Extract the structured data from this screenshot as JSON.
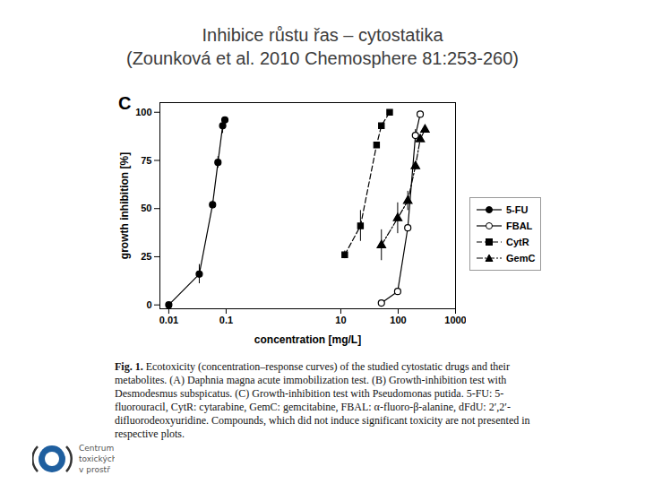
{
  "chart_data": {
    "type": "line",
    "title": "Inhibice růstu řas – cytostatika",
    "subtitle": "(Zounková et al. 2010 Chemosphere 81:253-260)",
    "panel_label": "C",
    "x_label": "concentration [mg/L]",
    "y_label": "growth inhibition [%]",
    "log": "x",
    "grid": false,
    "legend": "right",
    "xlim": [
      0.007,
      1000
    ],
    "xticks": [
      0.01,
      0.1,
      10,
      100,
      1000
    ],
    "ylim": [
      -2,
      105
    ],
    "yticks": [
      0,
      25,
      50,
      75,
      100
    ],
    "series": [
      {
        "name": "5-FU",
        "color": "#000000",
        "marker": "circle",
        "line_style": "solid",
        "x": [
          0.01,
          0.034,
          0.058,
          0.072,
          0.087,
          0.095
        ],
        "values": [
          0,
          16,
          52,
          74,
          93,
          96
        ],
        "errors": [
          null,
          5,
          2,
          3,
          4,
          null
        ]
      },
      {
        "name": "FBAL",
        "color": "#000000",
        "marker": "circle-open",
        "line_style": "solid",
        "x": [
          51,
          98,
          147,
          200,
          242
        ],
        "values": [
          1,
          7,
          40,
          88,
          99
        ],
        "errors": [
          null,
          null,
          null,
          3,
          null
        ]
      },
      {
        "name": "CytR",
        "color": "#000000",
        "marker": "square",
        "line_style": "dashed",
        "x": [
          11.7,
          22,
          42,
          51,
          71
        ],
        "values": [
          26,
          41,
          83,
          93,
          100
        ],
        "errors": [
          2,
          8,
          null,
          null,
          null
        ]
      },
      {
        "name": "GemC",
        "color": "#000000",
        "marker": "triangle",
        "line_style": "dashdot",
        "x": [
          51,
          98,
          147,
          200,
          242,
          293
        ],
        "values": [
          31,
          45,
          54,
          72,
          86,
          91
        ],
        "errors": [
          8,
          8,
          5,
          2,
          1,
          null
        ]
      }
    ],
    "caption_label": "Fig. 1.",
    "caption": "Ecotoxicity (concentration–response curves) of the studied cytostatic drugs and their metabolites. (A) Daphnia magna acute immobilization test. (B) Growth-inhibition test with Desmodesmus subspicatus. (C) Growth-inhibition test with Pseudomonas putida. 5-FU: 5-fluorouracil, CytR: cytarabine, GemC: gemcitabine, FBAL: α-fluoro-β-alanine, dFdU: 2′,2′-difluorodeoxyuridine. Compounds, which did not induce significant toxicity are not presented in respective plots.",
    "logo_lines": [
      "Centrum",
      "toxických",
      "v prostř"
    ]
  }
}
